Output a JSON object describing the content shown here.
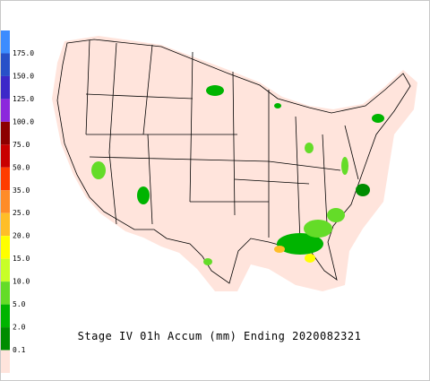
{
  "legend": {
    "labels": [
      "175.0",
      "150.0",
      "125.0",
      "100.0",
      "75.0",
      "50.0",
      "35.0",
      "25.0",
      "20.0",
      "15.0",
      "10.0",
      "5.0",
      "2.0",
      "0.1"
    ],
    "colors": [
      "#3c8cff",
      "#2850c8",
      "#3c28c8",
      "#8c28dc",
      "#8c0000",
      "#c80000",
      "#ff3c00",
      "#ff8c28",
      "#ffbe28",
      "#ffff00",
      "#c8ff28",
      "#64dc28",
      "#00b400",
      "#008c00",
      "#ffe4dc"
    ]
  },
  "title": "Stage IV 01h Accum (mm) Ending 2020082321"
}
